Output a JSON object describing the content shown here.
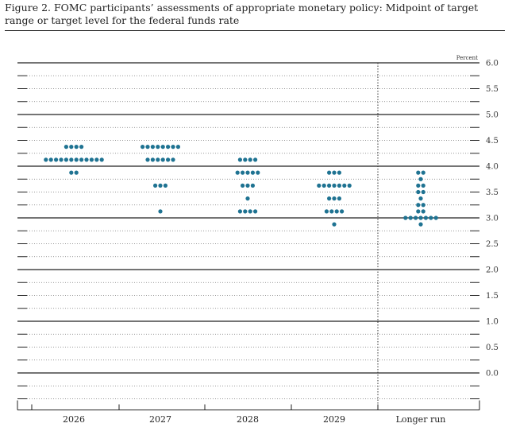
{
  "figure": {
    "title": "Figure 2. FOMC participants’ assessments of appropriate monetary policy: Midpoint of target range or target level for the federal funds rate"
  },
  "chart_data": {
    "type": "scatter",
    "title": "Figure 2. FOMC participants’ assessments of appropriate monetary policy: Midpoint of target range or target level for the federal funds rate",
    "unit": "Percent",
    "categories": [
      "2026",
      "2027",
      "2028",
      "2029",
      "Longer run"
    ],
    "ylim": [
      -0.5,
      6.0
    ],
    "y_ticks": [
      "6.0",
      "5.5",
      "5.0",
      "4.5",
      "4.0",
      "3.5",
      "3.0",
      "2.5",
      "2.0",
      "1.5",
      "1.0",
      "0.5",
      "0.0"
    ],
    "dot_color": "#1f7392",
    "grid": true,
    "series": [
      {
        "category": "2026",
        "points": [
          {
            "y": 4.375,
            "count": 4
          },
          {
            "y": 4.125,
            "count": 12
          },
          {
            "y": 3.875,
            "count": 2
          }
        ]
      },
      {
        "category": "2027",
        "points": [
          {
            "y": 4.375,
            "count": 8
          },
          {
            "y": 4.125,
            "count": 6
          },
          {
            "y": 3.625,
            "count": 3
          },
          {
            "y": 3.125,
            "count": 1
          }
        ]
      },
      {
        "category": "2028",
        "points": [
          {
            "y": 4.125,
            "count": 4
          },
          {
            "y": 3.875,
            "count": 5
          },
          {
            "y": 3.625,
            "count": 3
          },
          {
            "y": 3.375,
            "count": 1
          },
          {
            "y": 3.125,
            "count": 4
          }
        ]
      },
      {
        "category": "2029",
        "points": [
          {
            "y": 3.875,
            "count": 3
          },
          {
            "y": 3.625,
            "count": 7
          },
          {
            "y": 3.375,
            "count": 3
          },
          {
            "y": 3.125,
            "count": 4
          },
          {
            "y": 2.875,
            "count": 1
          }
        ]
      },
      {
        "category": "Longer run",
        "points": [
          {
            "y": 3.875,
            "count": 2
          },
          {
            "y": 3.75,
            "count": 1
          },
          {
            "y": 3.625,
            "count": 2
          },
          {
            "y": 3.5,
            "count": 2
          },
          {
            "y": 3.375,
            "count": 1
          },
          {
            "y": 3.25,
            "count": 2
          },
          {
            "y": 3.125,
            "count": 2
          },
          {
            "y": 3.0,
            "count": 7
          },
          {
            "y": 2.875,
            "count": 1
          }
        ]
      }
    ]
  }
}
